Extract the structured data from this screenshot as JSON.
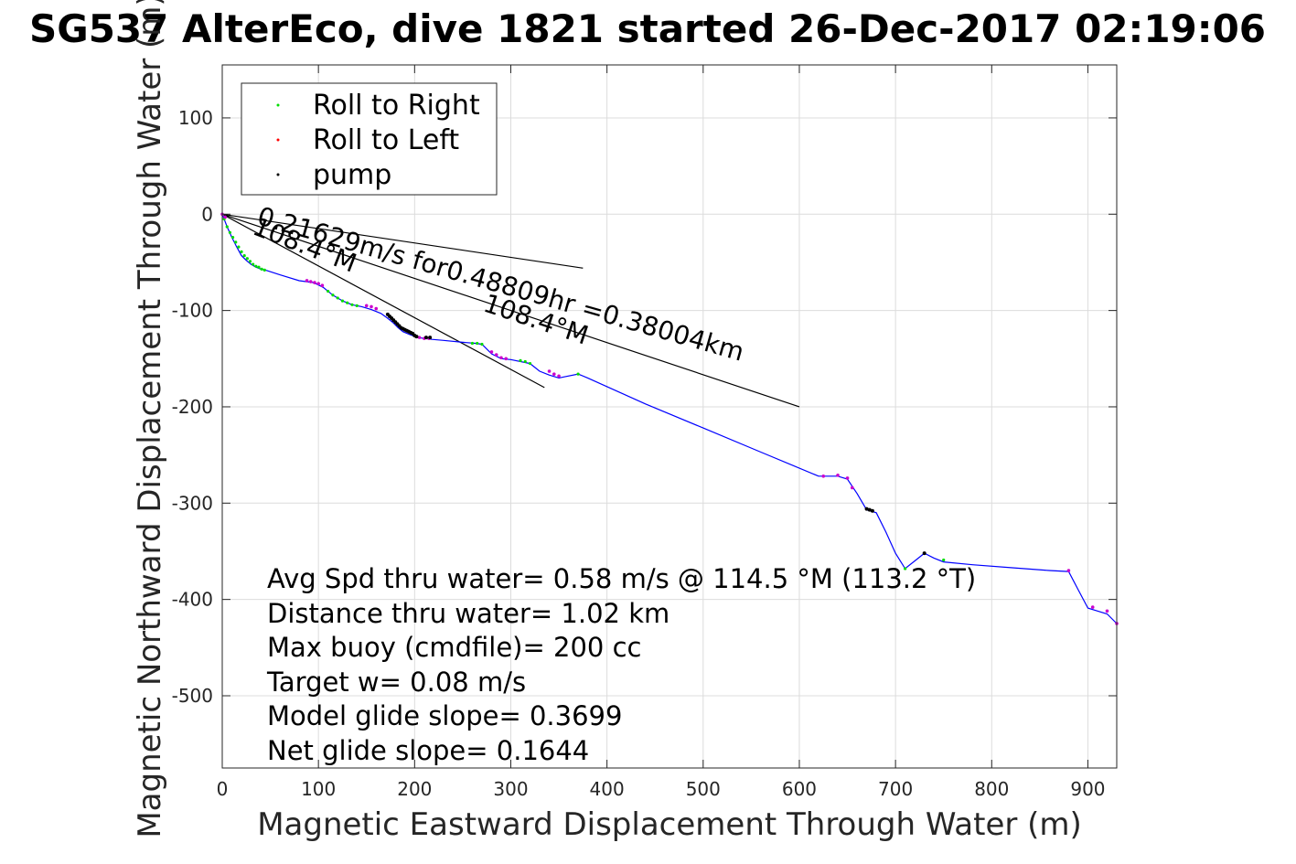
{
  "chart_data": {
    "type": "line",
    "title": "SG537 AlterEco, dive 1821 started 26-Dec-2017 02:19:06",
    "xlabel": "Magnetic Eastward Displacement Through Water (m)",
    "ylabel": "Magnetic Northward Displacement Through Water (m)",
    "xlim": [
      0,
      930
    ],
    "ylim": [
      -575,
      155
    ],
    "xticks": [
      0,
      100,
      200,
      300,
      400,
      500,
      600,
      700,
      800,
      900
    ],
    "yticks": [
      100,
      0,
      -100,
      -200,
      -300,
      -400,
      -500
    ],
    "grid": true,
    "legend_position": "top-left",
    "legend": [
      {
        "label": "Roll to Right",
        "color": "#00dd00"
      },
      {
        "label": "Roll to Left",
        "color": "#ff0000"
      },
      {
        "label": "pump",
        "color": "#000000"
      }
    ],
    "colors": {
      "track": "#0000ff",
      "roll_right": "#00dd00",
      "roll_left": "#ff0000",
      "pump": "#000000",
      "reference_line": "#000000",
      "mixed_marker": "#cc00cc"
    },
    "series": [
      {
        "name": "track",
        "x": [
          0,
          5,
          10,
          15,
          20,
          25,
          30,
          35,
          40,
          45,
          60,
          80,
          95,
          105,
          115,
          125,
          135,
          145,
          155,
          165,
          172,
          178,
          183,
          188,
          195,
          203,
          210,
          218,
          230,
          250,
          262,
          270,
          280,
          290,
          300,
          320,
          330,
          340,
          350,
          355,
          370,
          380,
          440,
          500,
          560,
          620,
          630,
          640,
          650,
          660,
          670,
          680,
          690,
          700,
          710,
          720,
          730,
          740,
          750,
          780,
          820,
          860,
          880,
          890,
          900,
          910,
          920,
          930
        ],
        "y": [
          0,
          -13,
          -24,
          -34,
          -43,
          -48,
          -52,
          -55,
          -57,
          -58,
          -63,
          -69,
          -71,
          -76,
          -84,
          -90,
          -94,
          -96,
          -99,
          -103,
          -108,
          -113,
          -118,
          -122,
          -125,
          -128,
          -129,
          -130,
          -131,
          -133,
          -134,
          -135,
          -145,
          -150,
          -151,
          -155,
          -163,
          -167,
          -170,
          -169,
          -166,
          -170,
          -197,
          -222,
          -247,
          -272,
          -272,
          -272,
          -275,
          -290,
          -307,
          -310,
          -330,
          -352,
          -368,
          -360,
          -352,
          -357,
          -361,
          -364,
          -367,
          -370,
          -371,
          -390,
          -409,
          -412,
          -415,
          -425
        ]
      },
      {
        "name": "Roll to Right",
        "x": [
          2,
          5,
          8,
          11,
          14,
          17,
          20,
          23,
          26,
          29,
          32,
          35,
          38,
          41,
          44,
          110,
          115,
          120,
          125,
          130,
          135,
          140,
          260,
          265,
          270,
          310,
          315,
          320,
          370,
          710,
          750
        ],
        "y": [
          -5,
          -13,
          -19,
          -24,
          -29,
          -34,
          -39,
          -43,
          -46,
          -49,
          -52,
          -54,
          -55,
          -57,
          -58,
          -80,
          -84,
          -87,
          -90,
          -92,
          -94,
          -95,
          -134,
          -134,
          -135,
          -152,
          -153,
          -155,
          -166,
          -368,
          -359
        ]
      },
      {
        "name": "Roll to Left",
        "x": [
          0,
          3,
          88,
          92,
          96,
          100,
          104,
          150,
          155,
          160,
          205,
          210,
          215,
          280,
          285,
          290,
          295,
          340,
          345,
          350,
          625,
          640,
          650,
          655,
          880,
          905,
          920,
          930
        ],
        "y": [
          0,
          -3,
          -69,
          -70,
          -71,
          -72,
          -74,
          -95,
          -96,
          -98,
          -128,
          -129,
          -129,
          -143,
          -146,
          -149,
          -150,
          -163,
          -166,
          -168,
          -272,
          -271,
          -274,
          -284,
          -370,
          -408,
          -412,
          -425
        ]
      },
      {
        "name": "pump",
        "x": [
          172,
          174,
          176,
          178,
          180,
          182,
          184,
          186,
          188,
          190,
          192,
          194,
          196,
          198,
          200,
          202,
          212,
          216,
          670,
          673,
          676,
          730
        ],
        "y": [
          -104,
          -106,
          -108,
          -110,
          -112,
          -114,
          -116,
          -118,
          -119,
          -120,
          -121,
          -122,
          -123,
          -124,
          -126,
          -127,
          -128,
          -128,
          -306,
          -307,
          -308,
          -352
        ]
      }
    ],
    "reference_lines": [
      {
        "x": [
          0,
          375
        ],
        "y": [
          0,
          -56
        ]
      },
      {
        "x": [
          0,
          335
        ],
        "y": [
          0,
          -180
        ]
      },
      {
        "x": [
          0,
          600
        ],
        "y": [
          0,
          -200
        ]
      }
    ],
    "annotations": [
      {
        "text": "0.21629m/s for0.48809hr =0.38004km",
        "x": 35,
        "y": -10,
        "angle": 15.8
      },
      {
        "text": "108.4°M",
        "x": 30,
        "y": -20,
        "angle": 21.2
      },
      {
        "text": "108.4°M",
        "x": 270,
        "y": -100,
        "angle": 18.4
      }
    ],
    "stats": [
      "Avg Spd thru water=  0.58 m/s @ 114.5 °M (113.2 °T)",
      "Distance thru water=  1.02 km",
      "Max buoy (cmdfile)= 200 cc",
      "Target w= 0.08 m/s",
      "Model glide slope= 0.3699",
      "Net glide slope= 0.1644"
    ]
  }
}
